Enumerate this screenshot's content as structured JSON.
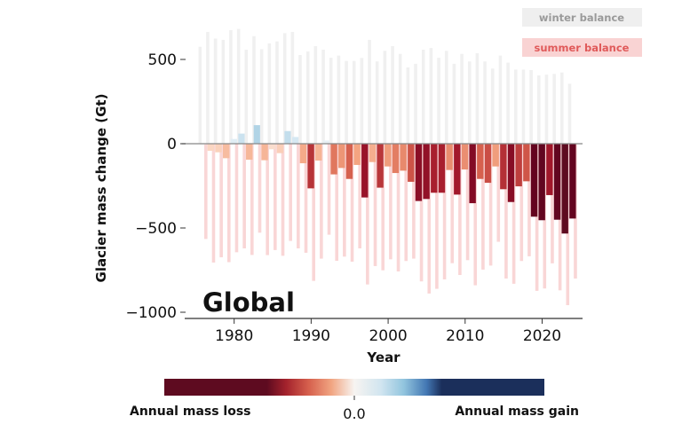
{
  "chart_data": {
    "type": "bar",
    "title": "",
    "panel_label": "Global",
    "xlabel": "Year",
    "ylabel": "Glacier mass change (Gt)",
    "ylim": [
      -1050,
      720
    ],
    "xlim": [
      1974.5,
      2025.5
    ],
    "yticks": [
      500,
      0,
      -500,
      -1000
    ],
    "ytick_labels": [
      "500",
      "0",
      "−500",
      "−1000"
    ],
    "xticks": [
      1980,
      1990,
      2000,
      2010,
      2020
    ],
    "xtick_labels": [
      "1980",
      "1990",
      "2000",
      "2010",
      "2020"
    ],
    "grid": false,
    "legend_position": "top-right",
    "legend": [
      {
        "label": "winter balance",
        "box_color": "#efefef",
        "text_color": "#9a9a9a"
      },
      {
        "label": "summer balance",
        "box_color": "#f9d3d3",
        "text_color": "#e05a5a"
      }
    ],
    "years": [
      1976,
      1977,
      1978,
      1979,
      1980,
      1981,
      1982,
      1983,
      1984,
      1985,
      1986,
      1987,
      1988,
      1989,
      1990,
      1991,
      1992,
      1993,
      1994,
      1995,
      1996,
      1997,
      1998,
      1999,
      2000,
      2001,
      2002,
      2003,
      2004,
      2005,
      2006,
      2007,
      2008,
      2009,
      2010,
      2011,
      2012,
      2013,
      2014,
      2015,
      2016,
      2017,
      2018,
      2019,
      2020,
      2021,
      2022,
      2023,
      2024
    ],
    "series": [
      {
        "name": "winter balance",
        "color": "#f0f0f0",
        "values": [
          575,
          663,
          624,
          616,
          674,
          681,
          558,
          638,
          561,
          595,
          607,
          656,
          663,
          526,
          547,
          579,
          558,
          510,
          523,
          491,
          491,
          509,
          616,
          488,
          551,
          579,
          533,
          453,
          474,
          558,
          568,
          510,
          551,
          474,
          533,
          488,
          537,
          488,
          446,
          523,
          481,
          440,
          440,
          437,
          405,
          410,
          414,
          423,
          356
        ]
      },
      {
        "name": "summer balance",
        "color": "#f9d6d6",
        "values": [
          -565,
          -705,
          -674,
          -703,
          -644,
          -621,
          -660,
          -528,
          -661,
          -631,
          -665,
          -577,
          -621,
          -647,
          -814,
          -682,
          -540,
          -695,
          -670,
          -700,
          -621,
          -835,
          -726,
          -751,
          -686,
          -758,
          -696,
          -682,
          -817,
          -889,
          -861,
          -805,
          -709,
          -779,
          -691,
          -840,
          -747,
          -723,
          -582,
          -800,
          -831,
          -696,
          -668,
          -873,
          -859,
          -710,
          -870,
          -958,
          -800
        ]
      },
      {
        "name": "annual balance",
        "values": [
          -5,
          -42,
          -51,
          -86,
          28,
          60,
          -95,
          110,
          -98,
          -33,
          -56,
          75,
          40,
          -116,
          -265,
          -100,
          19,
          -182,
          -144,
          -209,
          -126,
          -319,
          -109,
          -261,
          -135,
          -174,
          -160,
          -226,
          -340,
          -328,
          -291,
          -291,
          -156,
          -302,
          -153,
          -353,
          -209,
          -232,
          -135,
          -270,
          -346,
          -253,
          -223,
          -433,
          -454,
          -305,
          -451,
          -533,
          -444
        ]
      }
    ],
    "colorbar": {
      "label_left": "Annual mass loss",
      "label_center": "0.0",
      "label_right": "Annual mass gain",
      "colormap": "RdBu",
      "loss_color": "#5e0b20",
      "gain_color": "#1b2f5b"
    }
  }
}
